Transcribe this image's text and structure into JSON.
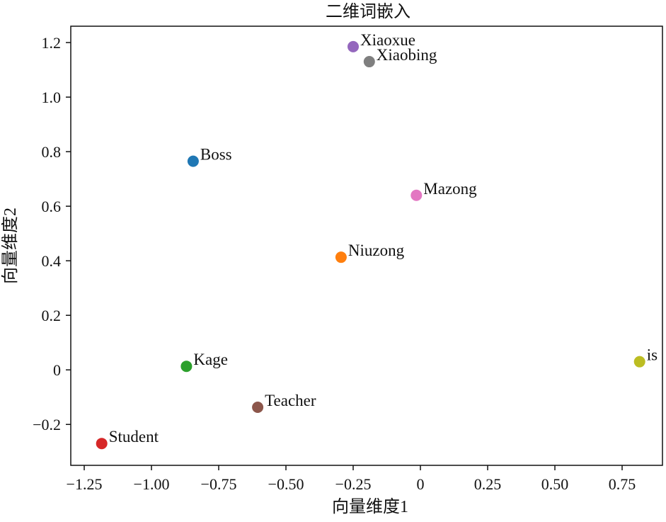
{
  "chart_data": {
    "type": "scatter",
    "title": "二维词嵌入",
    "xlabel": "向量维度1",
    "ylabel": "向量维度2",
    "xlim": [
      -1.3,
      0.9
    ],
    "ylim": [
      -0.35,
      1.26
    ],
    "xticks": [
      -1.25,
      -1.0,
      -0.75,
      -0.5,
      -0.25,
      0,
      0.25,
      0.5,
      0.75
    ],
    "xtick_labels": [
      "−1.25",
      "−1.00",
      "−0.75",
      "−0.50",
      "−0.25",
      "0",
      "0.25",
      "0.50",
      "0.75"
    ],
    "yticks": [
      -0.2,
      0,
      0.2,
      0.4,
      0.6,
      0.8,
      1.0,
      1.2
    ],
    "ytick_labels": [
      "−0.2",
      "0",
      "0.2",
      "0.4",
      "0.6",
      "0.8",
      "1.0",
      "1.2"
    ],
    "grid": false,
    "points": [
      {
        "label": "Xiaoxue",
        "x": -0.25,
        "y": 1.185,
        "color": "#9467bd"
      },
      {
        "label": "Xiaobing",
        "x": -0.19,
        "y": 1.13,
        "color": "#7f7f7f"
      },
      {
        "label": "Boss",
        "x": -0.845,
        "y": 0.765,
        "color": "#1f77b4"
      },
      {
        "label": "Mazong",
        "x": -0.015,
        "y": 0.64,
        "color": "#e377c2"
      },
      {
        "label": "Niuzong",
        "x": -0.295,
        "y": 0.413,
        "color": "#ff7f0e"
      },
      {
        "label": "is",
        "x": 0.815,
        "y": 0.03,
        "color": "#bcbd22"
      },
      {
        "label": "Kage",
        "x": -0.87,
        "y": 0.013,
        "color": "#2ca02c"
      },
      {
        "label": "Teacher",
        "x": -0.605,
        "y": -0.137,
        "color": "#8c564b"
      },
      {
        "label": "Student",
        "x": -1.185,
        "y": -0.27,
        "color": "#d62728"
      }
    ]
  }
}
